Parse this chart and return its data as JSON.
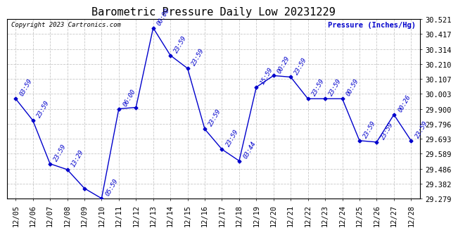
{
  "title": "Barometric Pressure Daily Low 20231229",
  "ylabel": "Pressure (Inches/Hg)",
  "copyright": "Copyright 2023 Cartronics.com",
  "line_color": "#0000cc",
  "background_color": "#ffffff",
  "grid_color": "#bbbbbb",
  "ylim": [
    29.279,
    30.521
  ],
  "yticks": [
    29.279,
    29.382,
    29.486,
    29.589,
    29.693,
    29.796,
    29.9,
    30.003,
    30.107,
    30.21,
    30.314,
    30.417,
    30.521
  ],
  "dates": [
    "12/05",
    "12/06",
    "12/07",
    "12/08",
    "12/09",
    "12/10",
    "12/11",
    "12/12",
    "12/13",
    "12/14",
    "12/15",
    "12/16",
    "12/17",
    "12/18",
    "12/19",
    "12/20",
    "12/21",
    "12/22",
    "12/23",
    "12/24",
    "12/25",
    "12/26",
    "12/27",
    "12/28"
  ],
  "values": [
    29.97,
    29.82,
    29.52,
    29.48,
    29.35,
    29.28,
    29.9,
    29.91,
    30.46,
    30.27,
    30.18,
    29.76,
    29.62,
    29.54,
    30.05,
    30.13,
    30.12,
    29.97,
    29.97,
    29.97,
    29.68,
    29.67,
    29.86,
    29.68
  ],
  "point_labels": [
    [
      0,
      "03:59"
    ],
    [
      1,
      "23:59"
    ],
    [
      2,
      "23:59"
    ],
    [
      3,
      "13:29"
    ],
    [
      5,
      "05:59"
    ],
    [
      6,
      "06:00"
    ],
    [
      8,
      "00:00"
    ],
    [
      9,
      "23:59"
    ],
    [
      10,
      "23:59"
    ],
    [
      11,
      "23:59"
    ],
    [
      12,
      "23:59"
    ],
    [
      13,
      "03:44"
    ],
    [
      14,
      "15:59"
    ],
    [
      15,
      "00:29"
    ],
    [
      16,
      "23:59"
    ],
    [
      17,
      "23:59"
    ],
    [
      18,
      "23:59"
    ],
    [
      19,
      "00:59"
    ],
    [
      20,
      "23:59"
    ],
    [
      21,
      "23:59"
    ],
    [
      22,
      "00:26"
    ],
    [
      23,
      "23:59"
    ]
  ],
  "title_fontsize": 11,
  "label_fontsize": 8,
  "tick_fontsize": 7.5
}
